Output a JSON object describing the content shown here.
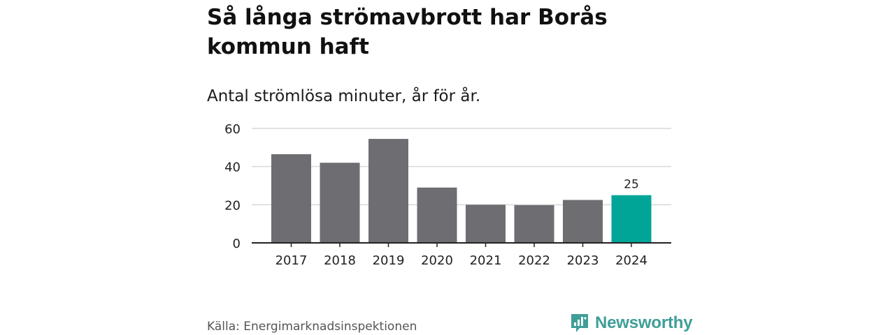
{
  "title": "Så långa strömavbrott har Borås kommun haft",
  "subtitle": "Antal strömlösa minuter, år för år.",
  "source": "Källa: Energimarknadsinspektionen",
  "brand": {
    "name": "Newsworthy",
    "icon": "newsworthy-logo-icon"
  },
  "colors": {
    "bar": "#6e6d72",
    "highlight": "#00a598",
    "grid": "#d9d9d9",
    "axis": "#222222",
    "brand": "#3f9e98"
  },
  "chart_data": {
    "type": "bar",
    "categories": [
      "2017",
      "2018",
      "2019",
      "2020",
      "2021",
      "2022",
      "2023",
      "2024"
    ],
    "values": [
      46.5,
      42,
      54.5,
      29,
      20,
      19.8,
      22.5,
      25
    ],
    "highlight_index": 7,
    "data_labels": [
      {
        "index": 7,
        "text": "25"
      }
    ],
    "title": "Så långa strömavbrott har Borås kommun haft",
    "subtitle": "Antal strömlösa minuter, år för år.",
    "xlabel": "",
    "ylabel": "",
    "ylim": [
      0,
      60
    ],
    "yticks": [
      0,
      20,
      40,
      60
    ],
    "grid": true,
    "legend": "none"
  }
}
